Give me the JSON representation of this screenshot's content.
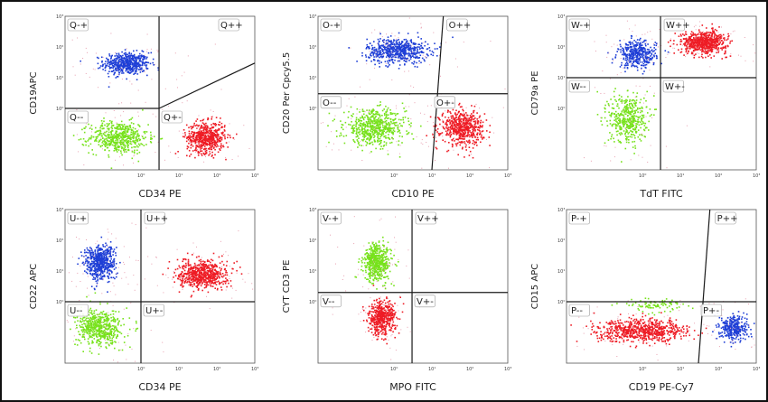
{
  "colors": {
    "blue": "#1f3fd6",
    "red": "#ee1c25",
    "green": "#77e21c",
    "pink": "#e8a0b0",
    "gate": "#1a1a1a"
  },
  "chart_data": [
    {
      "type": "scatter",
      "xlabel": "CD34 PE",
      "ylabel": "CD19APC",
      "xscale": "log",
      "yscale": "log",
      "xlim": [
        0.01,
        1000
      ],
      "ylim": [
        0.01,
        1000
      ],
      "quadrants": [
        "Q-+",
        "Q++",
        "Q--",
        "Q+-"
      ],
      "gate": {
        "x": 3,
        "y": 1,
        "y_right_at_gate": 1,
        "y_right_end": 30
      },
      "populations": [
        {
          "color": "blue",
          "cx": 0.4,
          "cy": 30,
          "sx": 0.3,
          "sy": 0.18,
          "n": 520
        },
        {
          "color": "green",
          "cx": 0.25,
          "cy": 0.12,
          "sx": 0.38,
          "sy": 0.26,
          "n": 520
        },
        {
          "color": "red",
          "cx": 50,
          "cy": 0.12,
          "sx": 0.25,
          "sy": 0.25,
          "n": 560
        }
      ]
    },
    {
      "type": "scatter",
      "xlabel": "CD10 PE",
      "ylabel": "CD20 Per Cpcy5.5",
      "xscale": "log",
      "yscale": "log",
      "xlim": [
        0.01,
        1000
      ],
      "ylim": [
        0.01,
        1000
      ],
      "quadrants": [
        "O-+",
        "O++",
        "O--",
        "O+-"
      ],
      "gate": {
        "x": 10,
        "y": 3,
        "x_top": 20
      },
      "populations": [
        {
          "color": "blue",
          "cx": 1.2,
          "cy": 80,
          "sx": 0.4,
          "sy": 0.2,
          "n": 600
        },
        {
          "color": "green",
          "cx": 0.3,
          "cy": 0.25,
          "sx": 0.4,
          "sy": 0.28,
          "n": 600
        },
        {
          "color": "red",
          "cx": 60,
          "cy": 0.25,
          "sx": 0.28,
          "sy": 0.28,
          "n": 560
        }
      ]
    },
    {
      "type": "scatter",
      "xlabel": "TdT FITC",
      "ylabel": "CD79a PE",
      "xscale": "log",
      "yscale": "log",
      "xlim": [
        0.01,
        1000
      ],
      "ylim": [
        0.01,
        1000
      ],
      "quadrants": [
        "W-+",
        "W++",
        "W--",
        "W+-"
      ],
      "gate": {
        "x": 3,
        "y": 10
      },
      "populations": [
        {
          "color": "blue",
          "cx": 0.7,
          "cy": 60,
          "sx": 0.25,
          "sy": 0.22,
          "n": 380
        },
        {
          "color": "red",
          "cx": 40,
          "cy": 150,
          "sx": 0.3,
          "sy": 0.18,
          "n": 640
        },
        {
          "color": "green",
          "cx": 0.4,
          "cy": 0.5,
          "sx": 0.25,
          "sy": 0.4,
          "n": 440
        }
      ]
    },
    {
      "type": "scatter",
      "xlabel": "CD34 PE",
      "ylabel": "CD22 APC",
      "xscale": "log",
      "yscale": "log",
      "xlim": [
        0.01,
        1000
      ],
      "ylim": [
        0.01,
        1000
      ],
      "quadrants": [
        "U-+",
        "U++",
        "U--",
        "U+-"
      ],
      "gate": {
        "x": 1,
        "y": 1
      },
      "populations": [
        {
          "color": "blue",
          "cx": 0.08,
          "cy": 20,
          "sx": 0.2,
          "sy": 0.28,
          "n": 560
        },
        {
          "color": "green",
          "cx": 0.08,
          "cy": 0.15,
          "sx": 0.3,
          "sy": 0.3,
          "n": 540
        },
        {
          "color": "red",
          "cx": 40,
          "cy": 8,
          "sx": 0.32,
          "sy": 0.22,
          "n": 640
        }
      ]
    },
    {
      "type": "scatter",
      "xlabel": "MPO FITC",
      "ylabel": "CYT CD3 PE",
      "xscale": "log",
      "yscale": "log",
      "xlim": [
        0.01,
        1000
      ],
      "ylim": [
        0.01,
        1000
      ],
      "quadrants": [
        "V-+",
        "V++",
        "V--",
        "V+-"
      ],
      "gate": {
        "x": 3,
        "y": 2
      },
      "populations": [
        {
          "color": "green",
          "cx": 0.35,
          "cy": 20,
          "sx": 0.18,
          "sy": 0.3,
          "n": 520
        },
        {
          "color": "red",
          "cx": 0.45,
          "cy": 0.3,
          "sx": 0.18,
          "sy": 0.28,
          "n": 480
        }
      ]
    },
    {
      "type": "scatter",
      "xlabel": "CD19 PE-Cy7",
      "ylabel": "CD15 APC",
      "xscale": "log",
      "yscale": "log",
      "xlim": [
        0.01,
        1000
      ],
      "ylim": [
        0.01,
        1000
      ],
      "quadrants": [
        "P-+",
        "P++",
        "P--",
        "P+-"
      ],
      "gate": {
        "x": 30,
        "y": 1,
        "x_top": 60
      },
      "populations": [
        {
          "color": "red",
          "cx": 1,
          "cy": 0.12,
          "sx": 0.6,
          "sy": 0.18,
          "n": 700
        },
        {
          "color": "green",
          "cx": 2,
          "cy": 0.8,
          "sx": 0.4,
          "sy": 0.1,
          "n": 90
        },
        {
          "color": "blue",
          "cx": 250,
          "cy": 0.15,
          "sx": 0.18,
          "sy": 0.2,
          "n": 320
        }
      ]
    }
  ],
  "tick_labels": [
    "10⁰",
    "10¹",
    "10²",
    "10³"
  ]
}
